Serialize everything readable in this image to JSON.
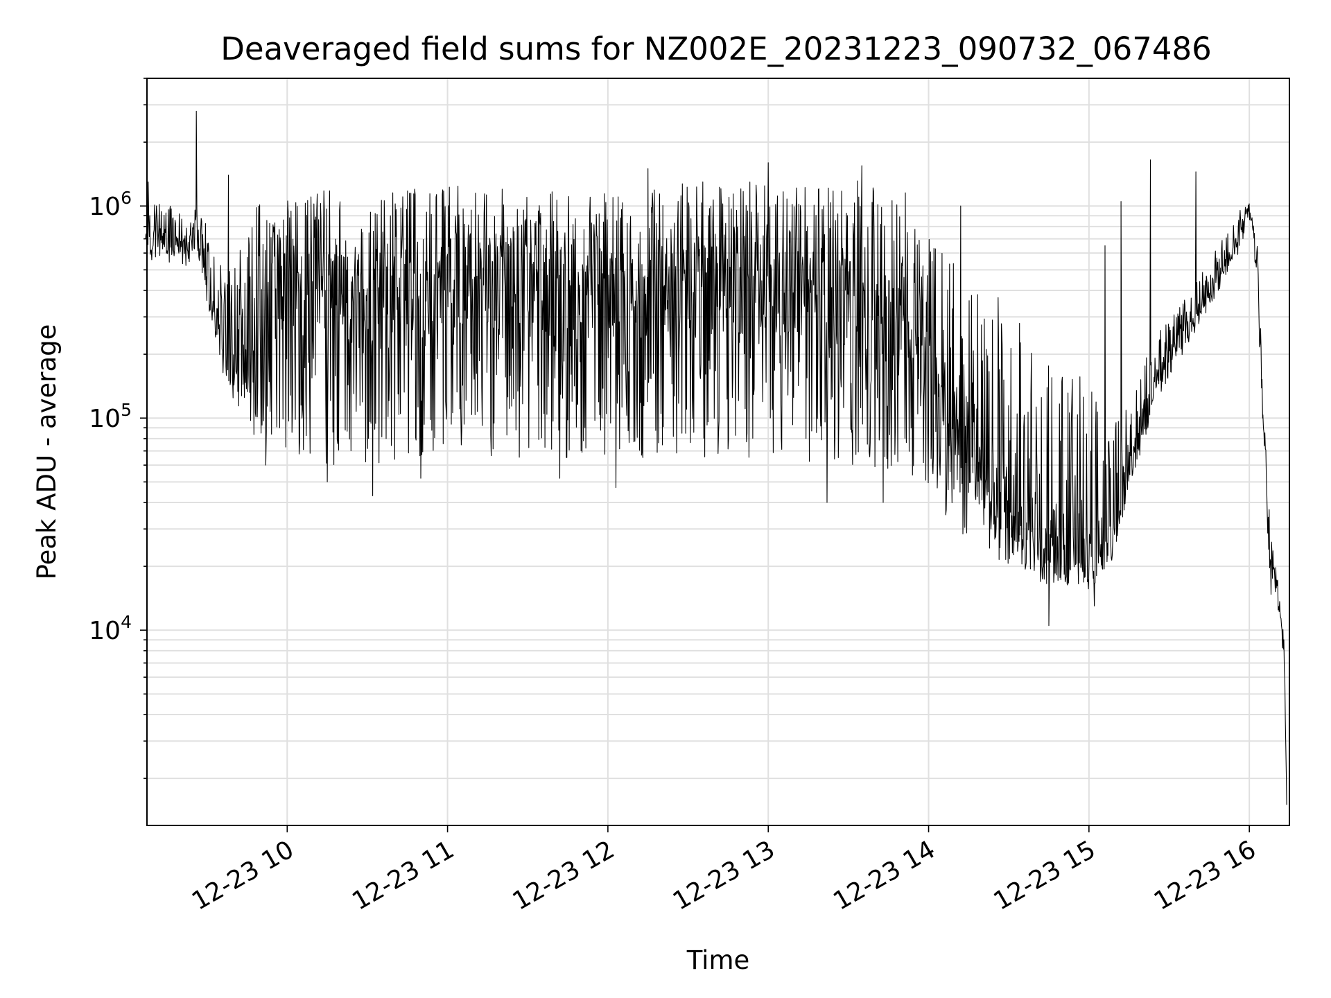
{
  "chart_data": {
    "type": "line",
    "title": "Deaveraged field sums for NZ002E_20231223_090732_067486",
    "xlabel": "Time",
    "ylabel": "Peak ADU - average",
    "x_scale": "time",
    "y_scale": "log",
    "xlim": [
      "2023-12-23 09:07:32",
      "2023-12-23 16:15:00"
    ],
    "ylim": [
      1200,
      4000000
    ],
    "grid": true,
    "legend": "none",
    "x_ticks": [
      "12-23 10",
      "12-23 11",
      "12-23 12",
      "12-23 13",
      "12-23 14",
      "12-23 15",
      "12-23 16"
    ],
    "y_ticks": [
      {
        "value": 10000,
        "base": "10",
        "exponent": "4"
      },
      {
        "value": 100000,
        "base": "10",
        "exponent": "5"
      },
      {
        "value": 1000000,
        "base": "10",
        "exponent": "6"
      }
    ],
    "colors": {
      "line": "#000000",
      "grid": "#e0e0e0",
      "axes": "#000000"
    },
    "series": [
      {
        "style": "thin line with strong high-frequency variation",
        "x": [
          "2023-12-23 09:07",
          "2023-12-23 09:15",
          "2023-12-23 09:22",
          "2023-12-23 09:26",
          "2023-12-23 09:30",
          "2023-12-23 09:33",
          "2023-12-23 09:38",
          "2023-12-23 09:43",
          "2023-12-23 09:48",
          "2023-12-23 09:53",
          "2023-12-23 10:00",
          "2023-12-23 10:15",
          "2023-12-23 10:30",
          "2023-12-23 10:45",
          "2023-12-23 11:00",
          "2023-12-23 11:30",
          "2023-12-23 12:00",
          "2023-12-23 12:30",
          "2023-12-23 13:00",
          "2023-12-23 13:30",
          "2023-12-23 13:50",
          "2023-12-23 14:00",
          "2023-12-23 14:10",
          "2023-12-23 14:25",
          "2023-12-23 14:40",
          "2023-12-23 14:50",
          "2023-12-23 15:00",
          "2023-12-23 15:08",
          "2023-12-23 15:15",
          "2023-12-23 15:25",
          "2023-12-23 15:35",
          "2023-12-23 15:45",
          "2023-12-23 15:55",
          "2023-12-23 16:00",
          "2023-12-23 16:03",
          "2023-12-23 16:05",
          "2023-12-23 16:08",
          "2023-12-23 16:11",
          "2023-12-23 16:13",
          "2023-12-23 16:14"
        ],
        "mid": [
          700000,
          700000,
          650000,
          800000,
          450000,
          300000,
          200000,
          160000,
          220000,
          350000,
          400000,
          380000,
          350000,
          400000,
          420000,
          400000,
          380000,
          400000,
          420000,
          350000,
          250000,
          180000,
          90000,
          50000,
          30000,
          25000,
          22000,
          28000,
          60000,
          150000,
          250000,
          400000,
          650000,
          1000000,
          500000,
          100000,
          20000,
          15000,
          8000,
          1500
        ],
        "low": [
          550000,
          550000,
          500000,
          600000,
          350000,
          220000,
          130000,
          100000,
          80000,
          70000,
          65000,
          60000,
          60000,
          60000,
          65000,
          65000,
          65000,
          65000,
          65000,
          60000,
          55000,
          45000,
          30000,
          22000,
          17000,
          15000,
          16000,
          20000,
          45000,
          120000,
          200000,
          330000,
          550000,
          850000,
          450000,
          80000,
          14000,
          12000,
          7000,
          1500
        ],
        "high": [
          950000,
          1100000,
          850000,
          1000000,
          800000,
          550000,
          500000,
          700000,
          1000000,
          1100000,
          1100000,
          1200000,
          1100000,
          1200000,
          1250000,
          1200000,
          1150000,
          1300000,
          1350000,
          1350000,
          1200000,
          900000,
          600000,
          350000,
          250000,
          180000,
          150000,
          90000,
          120000,
          250000,
          350000,
          550000,
          900000,
          1100000,
          650000,
          150000,
          30000,
          22000,
          11000,
          1500
        ],
        "spikes": [
          {
            "x": "2023-12-23 09:08",
            "y": 1300000
          },
          {
            "x": "2023-12-23 09:26",
            "y": 2800000
          },
          {
            "x": "2023-12-23 09:38",
            "y": 1400000
          },
          {
            "x": "2023-12-23 09:52",
            "y": 60000
          },
          {
            "x": "2023-12-23 10:15",
            "y": 50000
          },
          {
            "x": "2023-12-23 10:32",
            "y": 43000
          },
          {
            "x": "2023-12-23 10:50",
            "y": 52000
          },
          {
            "x": "2023-12-23 11:42",
            "y": 52000
          },
          {
            "x": "2023-12-23 12:03",
            "y": 47000
          },
          {
            "x": "2023-12-23 12:15",
            "y": 1500000
          },
          {
            "x": "2023-12-23 13:00",
            "y": 1600000
          },
          {
            "x": "2023-12-23 13:22",
            "y": 40000
          },
          {
            "x": "2023-12-23 13:35",
            "y": 1550000
          },
          {
            "x": "2023-12-23 13:43",
            "y": 40000
          },
          {
            "x": "2023-12-23 14:12",
            "y": 1000000
          },
          {
            "x": "2023-12-23 14:26",
            "y": 370000
          },
          {
            "x": "2023-12-23 14:45",
            "y": 10500
          },
          {
            "x": "2023-12-23 15:02",
            "y": 13000
          },
          {
            "x": "2023-12-23 15:06",
            "y": 650000
          },
          {
            "x": "2023-12-23 15:12",
            "y": 1050000
          },
          {
            "x": "2023-12-23 15:23",
            "y": 1650000
          },
          {
            "x": "2023-12-23 15:40",
            "y": 1450000
          },
          {
            "x": "2023-12-23 16:05",
            "y": 100000
          }
        ]
      }
    ]
  }
}
